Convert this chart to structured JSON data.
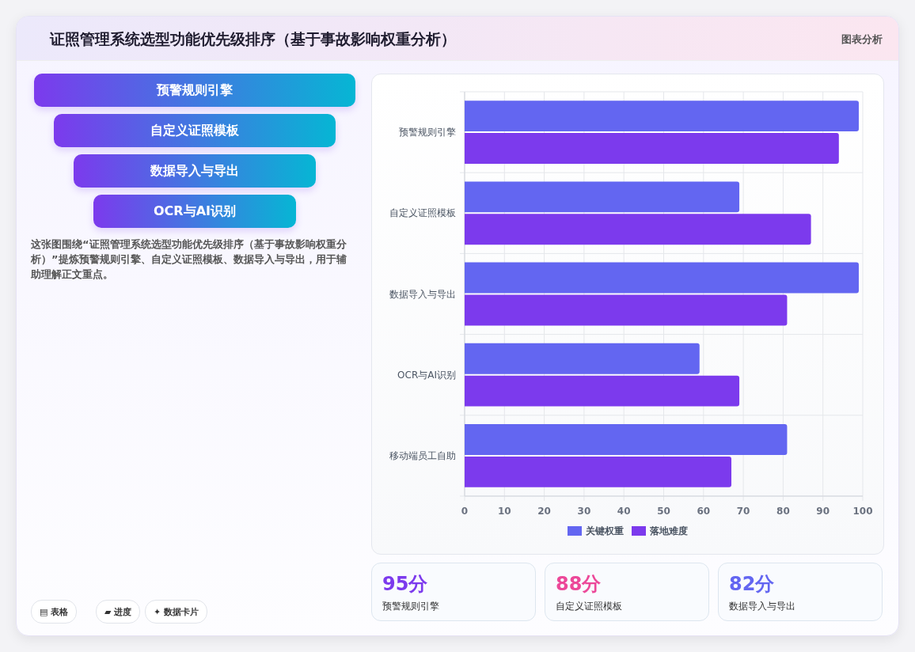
{
  "chart_data": [
    {
      "type": "other",
      "title": "证照管理系统选型功能优先级排序（基于事故影响权重分析）",
      "categories": [
        "预警规则引擎",
        "自定义证照模板",
        "数据导入与导出",
        "OCR与AI识别"
      ],
      "annotations": [
        "图表分析",
        "这张图围绕“证照管理系统选型功能优先级排序（基于事故影响权重分析）”提炼预警规则引擎、自定义证照模板、数据导入与导出，用于辅助理解正文重点。",
        "▤ 表格",
        "▰ 进度",
        "✦ 数据卡片"
      ]
    },
    {
      "type": "bar",
      "orientation": "horizontal",
      "categories": [
        "预警规则引擎",
        "自定义证照模板",
        "数据导入与导出",
        "OCR与AI识别",
        "移动端员工自助"
      ],
      "series": [
        {
          "name": "关键权重",
          "color": "#6366f1",
          "values": [
            99,
            69,
            99,
            59,
            81
          ]
        },
        {
          "name": "落地难度",
          "color": "#7c3aed",
          "values": [
            94,
            87,
            81,
            69,
            67
          ]
        }
      ],
      "xlim": [
        0,
        100
      ],
      "xticks": [
        0,
        10,
        20,
        30,
        40,
        50,
        60,
        70,
        80,
        90,
        100
      ],
      "grid": true,
      "legend": "bottom"
    },
    {
      "type": "other",
      "categories": [
        "预警规则引擎",
        "自定义证照模板",
        "数据导入与导出"
      ],
      "annotations": [
        "95分",
        "88分",
        "82分"
      ]
    }
  ]
}
